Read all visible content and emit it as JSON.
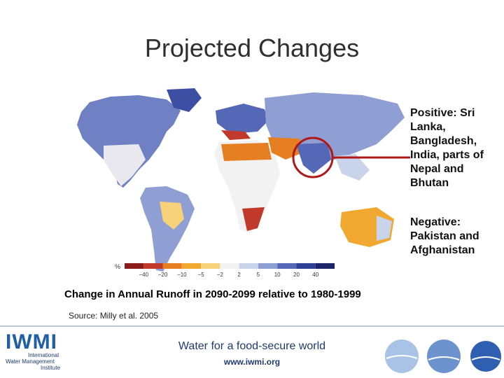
{
  "title": "Projected Changes",
  "annotations": {
    "positive": "Positive:  Sri Lanka, Bangladesh, India, parts of Nepal and Bhutan",
    "negative": "Negative: Pakistan and Afghanistan"
  },
  "legend": {
    "unit": "%",
    "ticks": [
      "−40",
      "−20",
      "−10",
      "−5",
      "−2",
      "2",
      "5",
      "10",
      "20",
      "40"
    ],
    "colors": [
      "#8b1a1a",
      "#c0392b",
      "#e67e22",
      "#f0a830",
      "#f7d27a",
      "#f2f2f2",
      "#c9d3ea",
      "#8f9fd4",
      "#5568b8",
      "#2f3f96",
      "#1a2466"
    ]
  },
  "caption": "Change in Annual Runoff in 2090-2099 relative to 1980-1999",
  "source": "Source:  Milly et al. 2005",
  "footer": {
    "logo_text": "IWMI",
    "logo_sub": [
      "International",
      "Water Management",
      "Institute"
    ],
    "tagline": "Water for a food-secure world",
    "url": "www.iwmi.org"
  },
  "colors": {
    "highlight_circle": "#b01818",
    "brand_blue": "#1f3b73"
  }
}
